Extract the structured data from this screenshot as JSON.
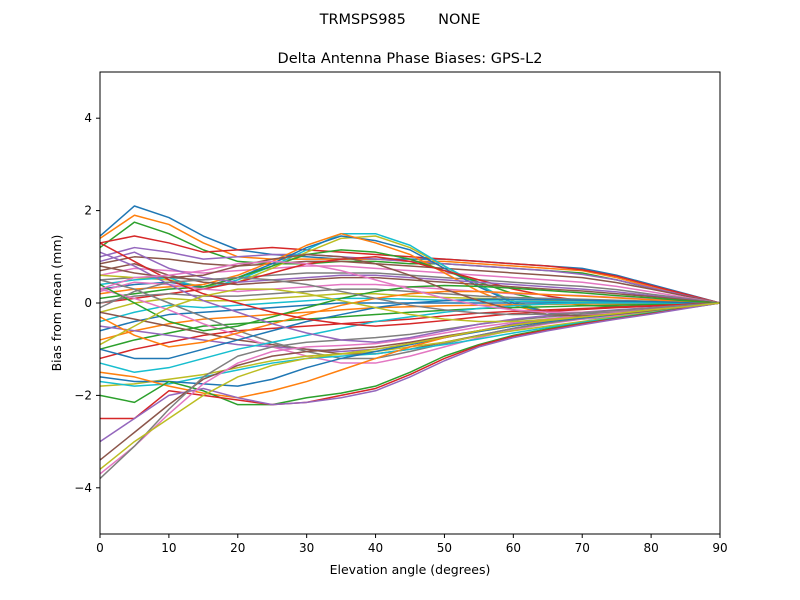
{
  "chart_data": {
    "type": "line",
    "suptitle": "TRMSPS985       NONE",
    "title": "Delta Antenna Phase Biases: GPS-L2",
    "xlabel": "Elevation angle (degrees)",
    "ylabel": "Bias from mean (mm)",
    "xlim": [
      0,
      90
    ],
    "ylim": [
      -5,
      5
    ],
    "xticks": [
      0,
      10,
      20,
      30,
      40,
      50,
      60,
      70,
      80,
      90
    ],
    "xtick_labels": [
      "0",
      "10",
      "20",
      "30",
      "40",
      "50",
      "60",
      "70",
      "80",
      "90"
    ],
    "yticks": [
      -4,
      -2,
      0,
      2,
      4
    ],
    "ytick_labels": [
      "−4",
      "−2",
      "0",
      "2",
      "4"
    ],
    "grid": false,
    "legend": "none",
    "x": [
      0,
      5,
      10,
      15,
      20,
      25,
      30,
      35,
      40,
      45,
      50,
      55,
      60,
      65,
      70,
      75,
      80,
      85,
      90
    ],
    "colors": [
      "#1f77b4",
      "#ff7f0e",
      "#2ca02c",
      "#d62728",
      "#9467bd",
      "#8c564b",
      "#e377c2",
      "#7f7f7f",
      "#bcbd22",
      "#17becf"
    ],
    "series": [
      {
        "values": [
          1.45,
          2.1,
          1.85,
          1.45,
          1.15,
          1.05,
          1.0,
          0.95,
          0.95,
          0.95,
          0.95,
          0.9,
          0.85,
          0.8,
          0.75,
          0.6,
          0.4,
          0.2,
          0.0
        ]
      },
      {
        "values": [
          1.4,
          1.9,
          1.7,
          1.3,
          1.0,
          0.95,
          0.95,
          0.95,
          0.95,
          0.9,
          0.9,
          0.85,
          0.8,
          0.75,
          0.7,
          0.55,
          0.35,
          0.18,
          0.0
        ]
      },
      {
        "values": [
          1.2,
          1.75,
          1.5,
          1.15,
          0.9,
          0.85,
          0.85,
          0.9,
          0.9,
          0.85,
          0.85,
          0.8,
          0.75,
          0.7,
          0.65,
          0.5,
          0.32,
          0.16,
          0.0
        ]
      },
      {
        "values": [
          1.3,
          1.45,
          1.3,
          1.1,
          1.15,
          1.2,
          1.15,
          1.1,
          1.05,
          1.0,
          0.95,
          0.9,
          0.85,
          0.8,
          0.72,
          0.58,
          0.38,
          0.19,
          0.0
        ]
      },
      {
        "values": [
          1.0,
          1.2,
          1.1,
          0.95,
          1.0,
          1.05,
          1.05,
          1.0,
          0.95,
          0.9,
          0.85,
          0.8,
          0.75,
          0.7,
          0.62,
          0.5,
          0.33,
          0.16,
          0.0
        ]
      },
      {
        "values": [
          0.85,
          1.0,
          0.95,
          0.85,
          0.8,
          0.85,
          0.9,
          0.9,
          0.85,
          0.8,
          0.75,
          0.7,
          0.65,
          0.6,
          0.55,
          0.44,
          0.3,
          0.15,
          0.0
        ]
      },
      {
        "values": [
          0.6,
          0.75,
          0.7,
          0.65,
          0.7,
          0.75,
          0.8,
          0.8,
          0.75,
          0.7,
          0.65,
          0.6,
          0.55,
          0.5,
          0.45,
          0.36,
          0.24,
          0.12,
          0.0
        ]
      },
      {
        "values": [
          0.5,
          0.55,
          0.55,
          0.5,
          0.55,
          0.6,
          0.65,
          0.65,
          0.65,
          0.6,
          0.55,
          0.5,
          0.45,
          0.4,
          0.36,
          0.29,
          0.19,
          0.1,
          0.0
        ]
      },
      {
        "values": [
          0.6,
          0.55,
          0.5,
          0.35,
          0.45,
          0.75,
          1.1,
          1.4,
          1.45,
          1.2,
          0.8,
          0.35,
          0.05,
          -0.2,
          -0.3,
          -0.28,
          -0.18,
          -0.09,
          0.0
        ]
      },
      {
        "values": [
          0.4,
          0.5,
          0.55,
          0.3,
          0.5,
          0.8,
          1.15,
          1.5,
          1.5,
          1.25,
          0.8,
          0.4,
          0.0,
          -0.25,
          -0.35,
          -0.3,
          -0.2,
          -0.1,
          0.0
        ]
      },
      {
        "values": [
          0.3,
          0.4,
          0.45,
          0.35,
          0.55,
          0.85,
          1.2,
          1.45,
          1.35,
          1.15,
          0.75,
          0.35,
          0.0,
          -0.2,
          -0.3,
          -0.27,
          -0.18,
          -0.09,
          0.0
        ]
      },
      {
        "values": [
          0.2,
          0.3,
          0.35,
          0.4,
          0.6,
          0.9,
          1.25,
          1.5,
          1.3,
          1.05,
          0.65,
          0.25,
          -0.05,
          -0.25,
          -0.32,
          -0.28,
          -0.19,
          -0.09,
          0.0
        ]
      },
      {
        "values": [
          0.1,
          0.2,
          0.3,
          0.35,
          0.55,
          0.8,
          1.05,
          1.15,
          1.1,
          0.95,
          0.7,
          0.45,
          0.2,
          0.05,
          -0.05,
          -0.08,
          -0.06,
          -0.03,
          0.0
        ]
      },
      {
        "values": [
          0.0,
          0.1,
          0.2,
          0.3,
          0.45,
          0.65,
          0.85,
          0.95,
          1.0,
          0.9,
          0.7,
          0.5,
          0.3,
          0.15,
          0.05,
          0.0,
          0.0,
          0.0,
          0.0
        ]
      },
      {
        "values": [
          0.9,
          1.1,
          0.75,
          0.55,
          0.45,
          0.5,
          0.55,
          0.6,
          0.6,
          0.55,
          0.5,
          0.45,
          0.4,
          0.35,
          0.3,
          0.24,
          0.16,
          0.08,
          0.0
        ]
      },
      {
        "values": [
          0.7,
          0.85,
          0.6,
          0.45,
          0.4,
          0.45,
          0.5,
          0.55,
          0.55,
          0.5,
          0.45,
          0.4,
          0.35,
          0.3,
          0.26,
          0.2,
          0.14,
          0.07,
          0.0
        ]
      },
      {
        "values": [
          0.25,
          0.45,
          0.4,
          0.3,
          0.25,
          0.3,
          0.35,
          0.4,
          0.4,
          0.35,
          0.3,
          0.25,
          0.2,
          0.18,
          0.16,
          0.12,
          0.08,
          0.04,
          0.0
        ]
      },
      {
        "values": [
          0.0,
          0.15,
          0.2,
          0.15,
          0.15,
          0.2,
          0.25,
          0.3,
          0.3,
          0.25,
          0.2,
          0.15,
          0.12,
          0.1,
          0.08,
          0.06,
          0.04,
          0.02,
          0.0
        ]
      },
      {
        "values": [
          -0.2,
          0.0,
          0.1,
          0.05,
          0.05,
          0.1,
          0.15,
          0.2,
          0.2,
          0.15,
          0.12,
          0.1,
          0.08,
          0.06,
          0.05,
          0.04,
          0.03,
          0.01,
          0.0
        ]
      },
      {
        "values": [
          -0.4,
          -0.2,
          -0.05,
          -0.1,
          -0.05,
          0.0,
          0.05,
          0.1,
          0.1,
          0.08,
          0.06,
          0.05,
          0.04,
          0.03,
          0.02,
          0.02,
          0.01,
          0.0,
          0.0
        ]
      },
      {
        "values": [
          -0.6,
          -0.4,
          -0.25,
          -0.2,
          -0.15,
          -0.1,
          -0.05,
          0.0,
          0.0,
          0.0,
          0.0,
          0.0,
          0.0,
          0.0,
          0.0,
          0.0,
          0.0,
          0.0,
          0.0
        ]
      },
      {
        "values": [
          -0.8,
          -0.6,
          -0.45,
          -0.35,
          -0.3,
          -0.25,
          -0.2,
          -0.15,
          -0.1,
          -0.08,
          -0.06,
          -0.05,
          -0.04,
          -0.03,
          -0.02,
          -0.02,
          -0.01,
          0.0,
          0.0
        ]
      },
      {
        "values": [
          -1.0,
          -0.8,
          -0.65,
          -0.5,
          -0.45,
          -0.4,
          -0.35,
          -0.3,
          -0.25,
          -0.2,
          -0.16,
          -0.12,
          -0.1,
          -0.08,
          -0.06,
          -0.05,
          -0.03,
          -0.02,
          0.0
        ]
      },
      {
        "values": [
          -1.2,
          -1.0,
          -0.85,
          -0.7,
          -0.6,
          -0.55,
          -0.5,
          -0.45,
          -0.4,
          -0.35,
          -0.28,
          -0.22,
          -0.18,
          -0.15,
          -0.12,
          -0.09,
          -0.06,
          -0.03,
          0.0
        ]
      },
      {
        "values": [
          -0.5,
          -0.6,
          -0.7,
          -0.8,
          -0.9,
          -0.95,
          -1.0,
          -1.05,
          -1.0,
          -0.9,
          -0.75,
          -0.6,
          -0.45,
          -0.35,
          -0.28,
          -0.22,
          -0.15,
          -0.07,
          0.0
        ]
      },
      {
        "values": [
          -0.2,
          -0.35,
          -0.5,
          -0.65,
          -0.8,
          -0.9,
          -1.0,
          -1.1,
          -1.1,
          -1.0,
          -0.85,
          -0.7,
          -0.55,
          -0.42,
          -0.33,
          -0.25,
          -0.17,
          -0.08,
          0.0
        ]
      },
      {
        "values": [
          0.3,
          0.1,
          -0.15,
          -0.45,
          -0.7,
          -0.95,
          -1.15,
          -1.3,
          -1.3,
          -1.15,
          -0.95,
          -0.75,
          -0.58,
          -0.45,
          -0.35,
          -0.27,
          -0.18,
          -0.09,
          0.0
        ]
      },
      {
        "values": [
          0.5,
          0.3,
          0.0,
          -0.3,
          -0.6,
          -0.85,
          -1.05,
          -1.2,
          -1.2,
          -1.05,
          -0.88,
          -0.7,
          -0.55,
          -0.43,
          -0.33,
          -0.25,
          -0.17,
          -0.08,
          0.0
        ]
      },
      {
        "values": [
          -1.8,
          -1.75,
          -1.65,
          -1.55,
          -1.4,
          -1.25,
          -1.15,
          -1.1,
          -1.05,
          -0.95,
          -0.85,
          -0.72,
          -0.6,
          -0.5,
          -0.4,
          -0.3,
          -0.2,
          -0.1,
          0.0
        ]
      },
      {
        "values": [
          -1.7,
          -1.8,
          -1.75,
          -1.6,
          -1.45,
          -1.3,
          -1.2,
          -1.15,
          -1.1,
          -1.0,
          -0.9,
          -0.78,
          -0.65,
          -0.53,
          -0.42,
          -0.32,
          -0.21,
          -0.1,
          0.0
        ]
      },
      {
        "values": [
          -1.6,
          -1.7,
          -1.7,
          -1.75,
          -1.8,
          -1.65,
          -1.4,
          -1.2,
          -1.05,
          -0.9,
          -0.75,
          -0.62,
          -0.5,
          -0.4,
          -0.32,
          -0.24,
          -0.16,
          -0.08,
          0.0
        ]
      },
      {
        "values": [
          -1.5,
          -1.6,
          -1.8,
          -1.95,
          -2.05,
          -1.9,
          -1.7,
          -1.45,
          -1.2,
          -0.95,
          -0.75,
          -0.6,
          -0.48,
          -0.38,
          -0.3,
          -0.23,
          -0.15,
          -0.07,
          0.0
        ]
      },
      {
        "values": [
          -2.0,
          -2.15,
          -1.7,
          -1.9,
          -2.2,
          -2.2,
          -2.05,
          -1.95,
          -1.8,
          -1.5,
          -1.15,
          -0.9,
          -0.7,
          -0.56,
          -0.44,
          -0.33,
          -0.22,
          -0.11,
          0.0
        ]
      },
      {
        "values": [
          -2.5,
          -2.5,
          -1.9,
          -2.0,
          -2.1,
          -2.2,
          -2.15,
          -2.0,
          -1.85,
          -1.55,
          -1.2,
          -0.92,
          -0.72,
          -0.58,
          -0.45,
          -0.34,
          -0.23,
          -0.11,
          0.0
        ]
      },
      {
        "values": [
          -3.0,
          -2.5,
          -2.0,
          -1.85,
          -2.05,
          -2.2,
          -2.15,
          -2.05,
          -1.9,
          -1.6,
          -1.25,
          -0.95,
          -0.75,
          -0.6,
          -0.47,
          -0.35,
          -0.24,
          -0.12,
          0.0
        ]
      },
      {
        "values": [
          -3.4,
          -2.8,
          -2.2,
          -1.65,
          -1.35,
          -1.15,
          -1.05,
          -1.0,
          -0.95,
          -0.85,
          -0.72,
          -0.6,
          -0.48,
          -0.38,
          -0.3,
          -0.23,
          -0.15,
          -0.07,
          0.0
        ]
      },
      {
        "values": [
          -3.7,
          -3.1,
          -2.4,
          -1.75,
          -1.3,
          -1.05,
          -0.95,
          -0.92,
          -0.88,
          -0.78,
          -0.65,
          -0.52,
          -0.42,
          -0.34,
          -0.27,
          -0.2,
          -0.13,
          -0.06,
          0.0
        ]
      },
      {
        "values": [
          -3.8,
          -3.1,
          -2.3,
          -1.6,
          -1.15,
          -0.95,
          -0.85,
          -0.8,
          -0.75,
          -0.68,
          -0.57,
          -0.46,
          -0.37,
          -0.3,
          -0.24,
          -0.18,
          -0.12,
          -0.06,
          0.0
        ]
      },
      {
        "values": [
          -3.6,
          -3.0,
          -2.5,
          -2.0,
          -1.6,
          -1.35,
          -1.2,
          -1.1,
          -1.0,
          -0.88,
          -0.74,
          -0.6,
          -0.48,
          -0.38,
          -0.3,
          -0.23,
          -0.15,
          -0.07,
          0.0
        ]
      },
      {
        "values": [
          -1.3,
          -1.5,
          -1.4,
          -1.2,
          -1.0,
          -0.85,
          -0.7,
          -0.55,
          -0.4,
          -0.3,
          -0.2,
          -0.12,
          -0.06,
          -0.02,
          0.0,
          0.0,
          0.0,
          0.0,
          0.0
        ]
      },
      {
        "values": [
          -1.0,
          -1.2,
          -1.2,
          -1.0,
          -0.8,
          -0.6,
          -0.4,
          -0.25,
          -0.1,
          0.0,
          0.05,
          0.08,
          0.08,
          0.07,
          0.06,
          0.04,
          0.03,
          0.01,
          0.0
        ]
      },
      {
        "values": [
          -0.3,
          -0.7,
          -0.95,
          -0.85,
          -0.65,
          -0.45,
          -0.25,
          -0.05,
          0.1,
          0.2,
          0.25,
          0.25,
          0.22,
          0.18,
          0.15,
          0.11,
          0.07,
          0.04,
          0.0
        ]
      },
      {
        "values": [
          0.4,
          0.0,
          -0.4,
          -0.6,
          -0.5,
          -0.3,
          -0.1,
          0.1,
          0.25,
          0.35,
          0.38,
          0.36,
          0.32,
          0.27,
          0.22,
          0.16,
          0.11,
          0.05,
          0.0
        ]
      },
      {
        "values": [
          1.3,
          0.9,
          0.5,
          0.2,
          0.0,
          -0.2,
          -0.35,
          -0.45,
          -0.5,
          -0.45,
          -0.38,
          -0.3,
          -0.23,
          -0.18,
          -0.14,
          -0.1,
          -0.07,
          -0.03,
          0.0
        ]
      },
      {
        "values": [
          1.1,
          0.8,
          0.4,
          0.05,
          -0.2,
          -0.45,
          -0.65,
          -0.8,
          -0.85,
          -0.75,
          -0.6,
          -0.46,
          -0.35,
          -0.27,
          -0.2,
          -0.15,
          -0.1,
          -0.05,
          0.0
        ]
      },
      {
        "values": [
          0.8,
          0.65,
          0.55,
          0.6,
          0.8,
          0.95,
          1.05,
          1.0,
          0.85,
          0.6,
          0.3,
          0.05,
          -0.15,
          -0.25,
          -0.28,
          -0.24,
          -0.16,
          -0.08,
          0.0
        ]
      },
      {
        "values": [
          0.3,
          0.55,
          0.6,
          0.7,
          0.85,
          0.9,
          0.85,
          0.7,
          0.5,
          0.3,
          0.1,
          -0.05,
          -0.15,
          -0.2,
          -0.2,
          -0.17,
          -0.11,
          -0.06,
          0.0
        ]
      },
      {
        "values": [
          -0.1,
          0.25,
          0.45,
          0.5,
          0.55,
          0.5,
          0.4,
          0.25,
          0.1,
          -0.05,
          -0.15,
          -0.22,
          -0.25,
          -0.24,
          -0.21,
          -0.16,
          -0.11,
          -0.05,
          0.0
        ]
      },
      {
        "values": [
          -0.9,
          -0.5,
          -0.1,
          0.15,
          0.3,
          0.3,
          0.2,
          0.05,
          -0.1,
          -0.25,
          -0.35,
          -0.4,
          -0.4,
          -0.36,
          -0.3,
          -0.23,
          -0.15,
          -0.08,
          0.0
        ]
      }
    ]
  }
}
